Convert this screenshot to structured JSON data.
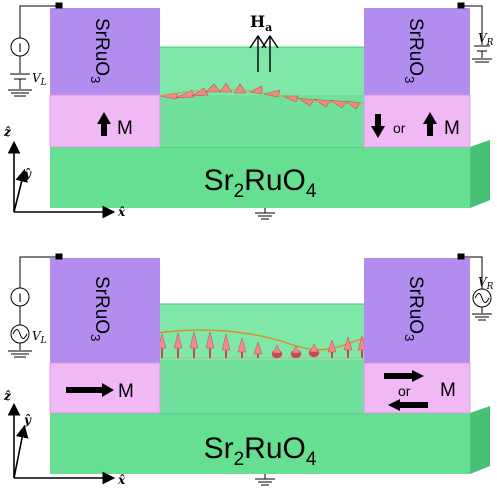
{
  "colors": {
    "green_face": "#6ee39a",
    "green_light": "#8ff0b3",
    "green_edge": "#3fb872",
    "purple_top": "#b089f0",
    "purple_front": "#9d73e6",
    "pink_band": "#f2b8f5",
    "spin": "#f08a8a",
    "spin_dark": "#c44a5a",
    "wave": "#e08a2a"
  },
  "panels": [
    {
      "id": "top",
      "left_block": {
        "label": "SrRuO",
        "subscript": "3",
        "magnet_label": "M",
        "magnet_arrow": "up-arrow-icon"
      },
      "right_block": {
        "label": "SrRuO",
        "subscript": "3",
        "or_text": "or",
        "magnet_label": "M",
        "magnet_arrows": [
          "down-arrow-icon",
          "up-arrow-icon"
        ]
      },
      "substrate": {
        "label": "Sr",
        "sub1": "2",
        "mid": "RuO",
        "sub2": "4"
      },
      "field": {
        "label": "H",
        "subscript": "a"
      },
      "source_left": {
        "symbol": "I",
        "voltage": "V",
        "voltage_sub": "L",
        "source_type": "dc-battery-icon"
      },
      "source_right": {
        "voltage": "V",
        "voltage_sub": "R",
        "source_type": "dc-battery-icon"
      },
      "axes": {
        "z": "ẑ",
        "y": "ŷ",
        "x": "x̂"
      }
    },
    {
      "id": "bottom",
      "left_block": {
        "label": "SrRuO",
        "subscript": "3",
        "magnet_label": "M",
        "magnet_arrow": "right-arrow-icon"
      },
      "right_block": {
        "label": "SrRuO",
        "subscript": "3",
        "or_text": "or",
        "magnet_label": "M",
        "magnet_arrows": [
          "right-arrow-icon",
          "left-arrow-icon"
        ]
      },
      "substrate": {
        "label": "Sr",
        "sub1": "2",
        "mid": "RuO",
        "sub2": "4"
      },
      "source_left": {
        "symbol": "I",
        "voltage": "V",
        "voltage_sub": "L",
        "source_type": "ac-source-icon"
      },
      "source_right": {
        "voltage": "V",
        "voltage_sub": "R",
        "source_type": "ac-source-icon"
      },
      "axes": {
        "z": "ẑ",
        "y": "ŷ",
        "x": "x̂"
      }
    }
  ]
}
